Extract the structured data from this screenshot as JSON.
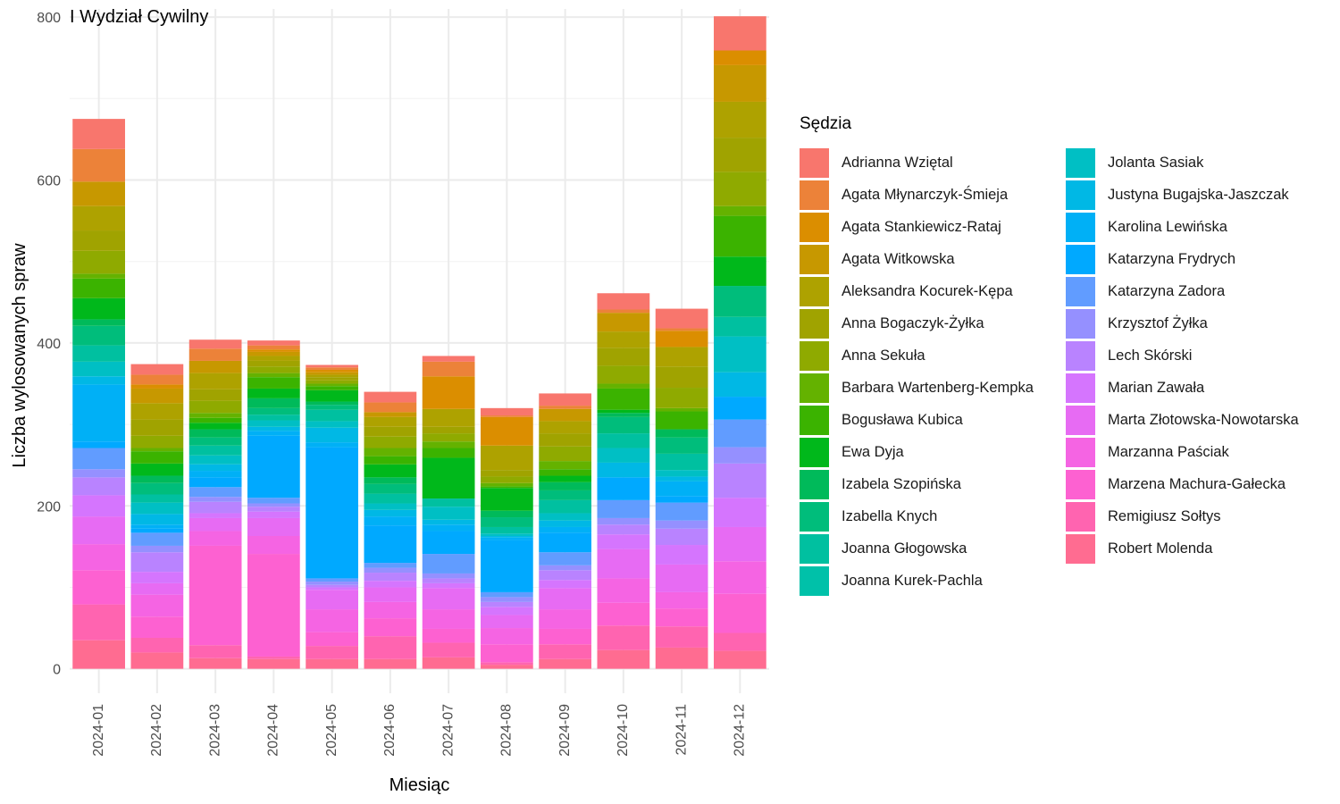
{
  "chart_data": {
    "type": "bar",
    "stacked": true,
    "title": "I Wydział Cywilny",
    "xlabel": "Miesiąc",
    "ylabel": "Liczba wylosowanych spraw",
    "ylim": [
      -30,
      810
    ],
    "yticks": [
      0,
      200,
      400,
      600,
      800
    ],
    "grid": true,
    "legend_position": "right",
    "legend_title": "Sędzia",
    "categories": [
      "2024-01",
      "2024-02",
      "2024-03",
      "2024-04",
      "2024-05",
      "2024-06",
      "2024-07",
      "2024-08",
      "2024-09",
      "2024-10",
      "2024-11",
      "2024-12"
    ],
    "series": [
      {
        "name": "Adrianna Wziętal",
        "color": "#F8766D",
        "values": [
          37,
          13,
          11,
          6,
          3,
          13,
          7,
          9,
          15,
          20,
          24,
          42
        ]
      },
      {
        "name": "Agata Młynarczyk-Śmieja",
        "color": "#EC8239",
        "values": [
          40,
          12,
          15,
          5,
          3,
          12,
          18,
          2,
          4,
          4,
          3,
          0
        ]
      },
      {
        "name": "Agata Stankiewicz-Rataj",
        "color": "#DB8E00",
        "values": [
          0,
          5,
          0,
          3,
          3,
          0,
          40,
          35,
          0,
          0,
          20,
          18
        ]
      },
      {
        "name": "Agata Witkowska",
        "color": "#C79800",
        "values": [
          30,
          18,
          15,
          5,
          3,
          6,
          0,
          0,
          15,
          23,
          0,
          45
        ]
      },
      {
        "name": "Aleksandra Kocurek-Kępa",
        "color": "#AEA200",
        "values": [
          30,
          20,
          20,
          6,
          3,
          12,
          22,
          30,
          15,
          20,
          24,
          44
        ]
      },
      {
        "name": "Anna Bogaczyk-Żyłka",
        "color": "#A0A300",
        "values": [
          25,
          20,
          14,
          7,
          4,
          12,
          8,
          8,
          16,
          22,
          26,
          42
        ]
      },
      {
        "name": "Anna Sekuła",
        "color": "#8FAA00",
        "values": [
          28,
          15,
          15,
          8,
          4,
          14,
          10,
          8,
          18,
          22,
          25,
          42
        ]
      },
      {
        "name": "Barbara Wartenberg-Kempka",
        "color": "#64B200",
        "values": [
          6,
          4,
          6,
          5,
          3,
          10,
          8,
          4,
          10,
          6,
          4,
          12
        ]
      },
      {
        "name": "Bogusława Kubica",
        "color": "#3BB300",
        "values": [
          24,
          15,
          6,
          14,
          5,
          10,
          12,
          2,
          8,
          26,
          22,
          50
        ]
      },
      {
        "name": "Ewa Dyja",
        "color": "#00B81B",
        "values": [
          26,
          15,
          8,
          12,
          14,
          16,
          50,
          28,
          8,
          4,
          0,
          36
        ]
      },
      {
        "name": "Izabela Szopińska",
        "color": "#00BA5A",
        "values": [
          8,
          9,
          10,
          12,
          4,
          8,
          0,
          8,
          10,
          5,
          10,
          0
        ]
      },
      {
        "name": "Izabella Knych",
        "color": "#00BD7B",
        "values": [
          24,
          14,
          10,
          8,
          6,
          12,
          0,
          12,
          12,
          20,
          20,
          38
        ]
      },
      {
        "name": "Joanna Głogowska",
        "color": "#00C0A0",
        "values": [
          20,
          10,
          12,
          7,
          14,
          12,
          10,
          8,
          16,
          18,
          20,
          24
        ]
      },
      {
        "name": "Joanna Kurek-Pachla",
        "color": "#00C1A9",
        "values": [
          0,
          0,
          0,
          0,
          0,
          0,
          0,
          0,
          0,
          0,
          0,
          0
        ]
      },
      {
        "name": "Jolanta Sasiak",
        "color": "#00BFC4",
        "values": [
          18,
          14,
          11,
          8,
          8,
          8,
          16,
          3,
          9,
          18,
          8,
          44
        ]
      },
      {
        "name": "Justyna Bugajska-Jaszczak",
        "color": "#00B8E5",
        "values": [
          10,
          13,
          8,
          5,
          18,
          8,
          6,
          2,
          8,
          18,
          6,
          30
        ]
      },
      {
        "name": "Karolina Lewińska",
        "color": "#00B0F6",
        "values": [
          70,
          5,
          8,
          6,
          6,
          11,
          8,
          3,
          7,
          0,
          18,
          0
        ]
      },
      {
        "name": "Katarzyna Frydrych",
        "color": "#00A9FF",
        "values": [
          8,
          5,
          12,
          76,
          161,
          46,
          28,
          64,
          24,
          28,
          8,
          28
        ]
      },
      {
        "name": "Katarzyna Zadora",
        "color": "#619CFF",
        "values": [
          26,
          16,
          12,
          7,
          4,
          6,
          24,
          6,
          16,
          22,
          22,
          34
        ]
      },
      {
        "name": "Krzysztof Żyłka",
        "color": "#9590FF",
        "values": [
          10,
          8,
          6,
          4,
          4,
          6,
          6,
          6,
          6,
          8,
          10,
          20
        ]
      },
      {
        "name": "Lech Skórski",
        "color": "#B983FF",
        "values": [
          22,
          24,
          14,
          6,
          3,
          10,
          6,
          6,
          12,
          12,
          20,
          42
        ]
      },
      {
        "name": "Marian Zawała",
        "color": "#D575FE",
        "values": [
          26,
          14,
          6,
          8,
          3,
          8,
          6,
          10,
          10,
          18,
          24,
          36
        ]
      },
      {
        "name": "Marta Złotowska-Nowotarska",
        "color": "#E76BF3",
        "values": [
          34,
          14,
          16,
          22,
          24,
          18,
          26,
          16,
          26,
          36,
          34,
          42
        ]
      },
      {
        "name": "Marzanna Paściak",
        "color": "#F564E3",
        "values": [
          32,
          27,
          18,
          22,
          28,
          20,
          24,
          20,
          24,
          30,
          20,
          40
        ]
      },
      {
        "name": "Marzena Machura-Gałecka",
        "color": "#FD61D1",
        "values": [
          42,
          26,
          122,
          126,
          17,
          22,
          17,
          22,
          19,
          28,
          22,
          48
        ]
      },
      {
        "name": "Remigiusz Sołtys",
        "color": "#FF64B0",
        "values": [
          44,
          18,
          16,
          3,
          16,
          28,
          18,
          3,
          18,
          30,
          26,
          22
        ]
      },
      {
        "name": "Robert Molenda",
        "color": "#FF6C91",
        "values": [
          35,
          20,
          13,
          12,
          12,
          12,
          14,
          5,
          12,
          23,
          26,
          22
        ]
      }
    ]
  }
}
